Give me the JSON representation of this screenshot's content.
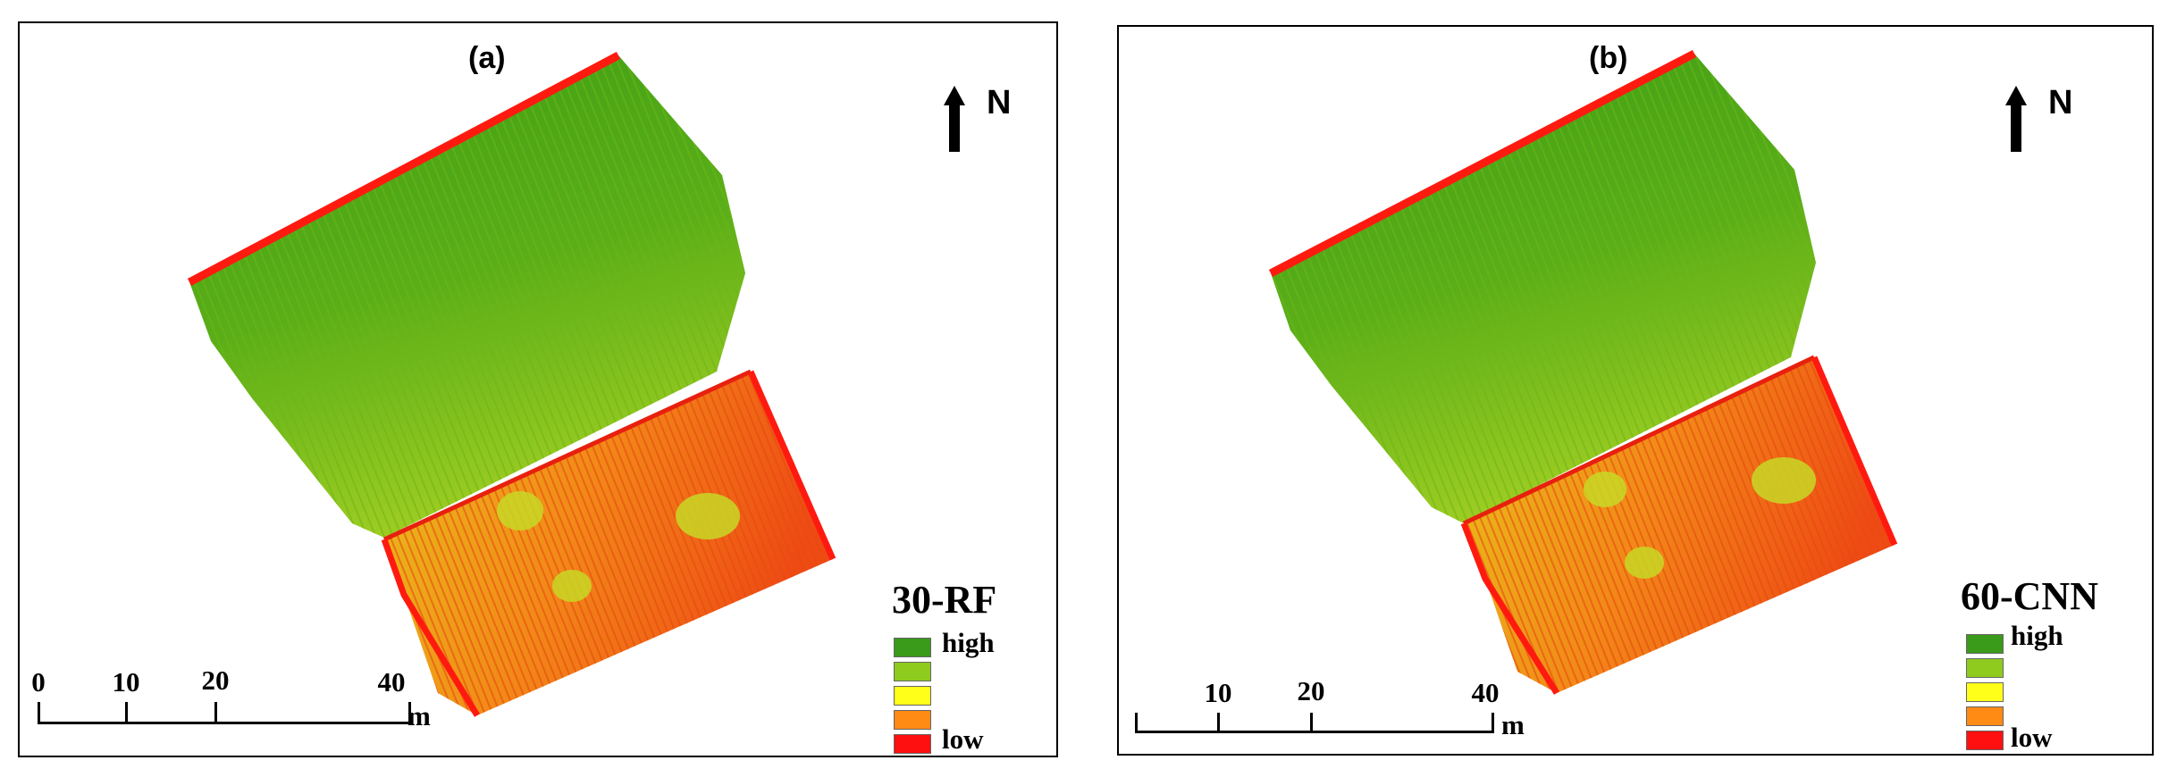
{
  "panels": [
    {
      "label": "(a)",
      "north": "N",
      "legend": {
        "title": "30-RF",
        "high": "high",
        "low": "low",
        "colors": [
          "#3a9a1a",
          "#8ecb1e",
          "#ffff1a",
          "#ff8a14",
          "#ff1010"
        ]
      },
      "scale": {
        "ticks": [
          "0",
          "10",
          "20",
          "40"
        ],
        "unit": "m"
      }
    },
    {
      "label": "(b)",
      "north": "N",
      "legend": {
        "title": "60-CNN",
        "high": "high",
        "low": "low",
        "colors": [
          "#3a9a1a",
          "#8ecb1e",
          "#ffff1a",
          "#ff8a14",
          "#ff1010"
        ]
      },
      "scale": {
        "ticks": [
          "10",
          "20",
          "40"
        ],
        "unit": "m"
      }
    }
  ]
}
